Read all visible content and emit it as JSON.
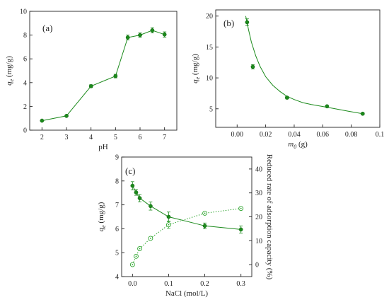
{
  "colors": {
    "series": "#1b8a1b",
    "open_marker": "#2ea52e",
    "axis": "#222222"
  },
  "chart_data": [
    {
      "id": "a",
      "type": "line",
      "panel_label": "(a)",
      "xlabel": "pH",
      "ylabel": "q",
      "ylabel_sub": "e",
      "ylabel_unit": " (mg/g)",
      "xlim": [
        1.5,
        7.5
      ],
      "ylim": [
        0,
        10
      ],
      "xticks": [
        2,
        3,
        4,
        5,
        6,
        7
      ],
      "xtick_labels": [
        "2",
        "3",
        "4",
        "5",
        "6",
        "7"
      ],
      "yticks": [
        0,
        2,
        4,
        6,
        8,
        10
      ],
      "ytick_labels": [
        "0",
        "2",
        "4",
        "6",
        "8",
        "10"
      ],
      "grid": false,
      "series": [
        {
          "marker": "filled-circle",
          "line": "solid",
          "x": [
            2,
            3,
            4,
            5,
            5.5,
            6,
            6.5,
            7
          ],
          "y": [
            0.8,
            1.2,
            3.7,
            4.55,
            7.8,
            8.0,
            8.4,
            8.05
          ],
          "err": [
            0,
            0,
            0.12,
            0.15,
            0.2,
            0.18,
            0.22,
            0.22
          ]
        }
      ]
    },
    {
      "id": "b",
      "type": "scatter",
      "panel_label": "(b)",
      "xlabel": "m",
      "xlabel_sub": "0",
      "xlabel_unit": " (g)",
      "ylabel": "q",
      "ylabel_sub": "e",
      "ylabel_unit": " (mg/g)",
      "xlim": [
        -0.015,
        0.1
      ],
      "ylim": [
        2,
        21
      ],
      "xticks": [
        0.0,
        0.02,
        0.04,
        0.06,
        0.08,
        0.1
      ],
      "xtick_labels": [
        "0.00",
        "0.02",
        "0.04",
        "0.06",
        "0.08",
        "0.1"
      ],
      "yticks": [
        5,
        10,
        15,
        20
      ],
      "ytick_labels": [
        "5",
        "10",
        "15",
        "20"
      ],
      "grid": false,
      "series": [
        {
          "marker": "filled-circle",
          "line": "fit",
          "x": [
            0.007,
            0.011,
            0.035,
            0.063,
            0.088
          ],
          "y": [
            19.0,
            11.8,
            6.8,
            5.4,
            4.2
          ],
          "err": [
            0.55,
            0.35,
            0.2,
            0.15,
            0.15
          ],
          "fit_x": [
            0.006,
            0.008,
            0.01,
            0.013,
            0.016,
            0.02,
            0.025,
            0.03,
            0.035,
            0.04,
            0.046,
            0.052,
            0.058,
            0.063,
            0.07,
            0.078,
            0.088
          ],
          "fit_y": [
            20.0,
            17.8,
            15.8,
            13.6,
            11.9,
            10.2,
            8.8,
            7.8,
            7.0,
            6.5,
            6.0,
            5.7,
            5.45,
            5.25,
            4.95,
            4.6,
            4.2
          ]
        }
      ]
    },
    {
      "id": "c",
      "type": "line",
      "panel_label": "(c)",
      "xlabel": "NaCl (mol/L)",
      "ylabel": "q",
      "ylabel_sub": "e",
      "ylabel_unit": " (mg/g)",
      "y2label": "Reduced rate of adsorption capacity (%)",
      "xlim": [
        -0.03,
        0.33
      ],
      "ylim": [
        4,
        9
      ],
      "y2lim": [
        -5,
        45
      ],
      "xticks": [
        0.0,
        0.1,
        0.2,
        0.3
      ],
      "xtick_labels": [
        "0.0",
        "0.1",
        "0.2",
        "0.3"
      ],
      "yticks": [
        4,
        5,
        6,
        7,
        8,
        9
      ],
      "ytick_labels": [
        "4",
        "5",
        "6",
        "7",
        "8",
        "9"
      ],
      "y2ticks": [
        0,
        10,
        20,
        30,
        40
      ],
      "y2tick_labels": [
        "0",
        "10",
        "20",
        "30",
        "40"
      ],
      "grid": false,
      "series": [
        {
          "axis": "left",
          "marker": "filled-circle",
          "line": "solid",
          "x": [
            0.0,
            0.01,
            0.02,
            0.05,
            0.1,
            0.2,
            0.3
          ],
          "y": [
            7.8,
            7.52,
            7.28,
            6.95,
            6.5,
            6.12,
            5.97
          ],
          "err": [
            0.17,
            0.12,
            0.15,
            0.17,
            0.2,
            0.12,
            0.15
          ]
        },
        {
          "axis": "right",
          "marker": "open-circle-dot",
          "line": "dotted",
          "x": [
            0.0,
            0.01,
            0.02,
            0.05,
            0.1,
            0.2,
            0.3
          ],
          "y": [
            0,
            3.5,
            6.7,
            11.0,
            16.7,
            21.5,
            23.5
          ],
          "err": [
            0,
            0,
            0,
            0,
            1.5,
            0,
            0
          ]
        }
      ]
    }
  ]
}
